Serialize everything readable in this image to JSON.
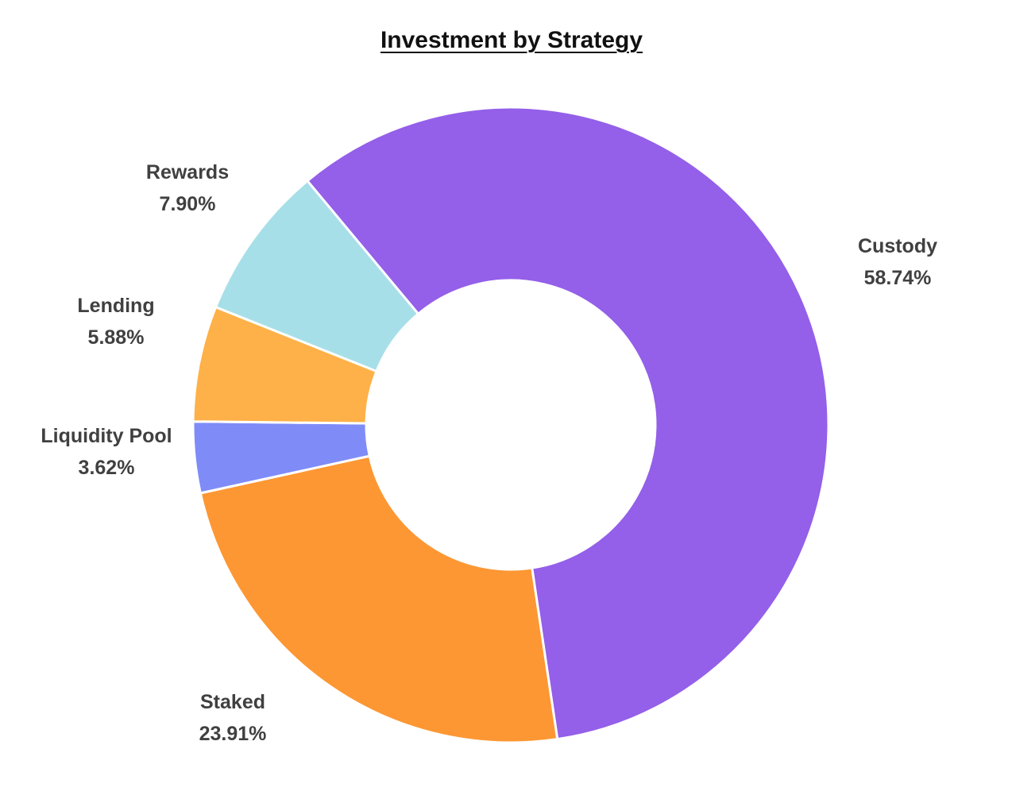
{
  "chart_data": {
    "type": "donut",
    "title": "Investment by Strategy",
    "unit": "%",
    "start_category": "Custody",
    "direction": "clockwise",
    "slices": [
      {
        "label": "Custody",
        "value": 58.74,
        "value_label": "58.74%",
        "color": "#945fe9"
      },
      {
        "label": "Staked",
        "value": 23.91,
        "value_label": "23.91%",
        "color": "#fd9733"
      },
      {
        "label": "Liquidity Pool",
        "value": 3.62,
        "value_label": "3.62%",
        "color": "#7f8cf7"
      },
      {
        "label": "Lending",
        "value": 5.88,
        "value_label": "5.88%",
        "color": "#feb148"
      },
      {
        "label": "Rewards",
        "value": 7.9,
        "value_label": "7.90%",
        "color": "#a7dfe9"
      }
    ]
  }
}
